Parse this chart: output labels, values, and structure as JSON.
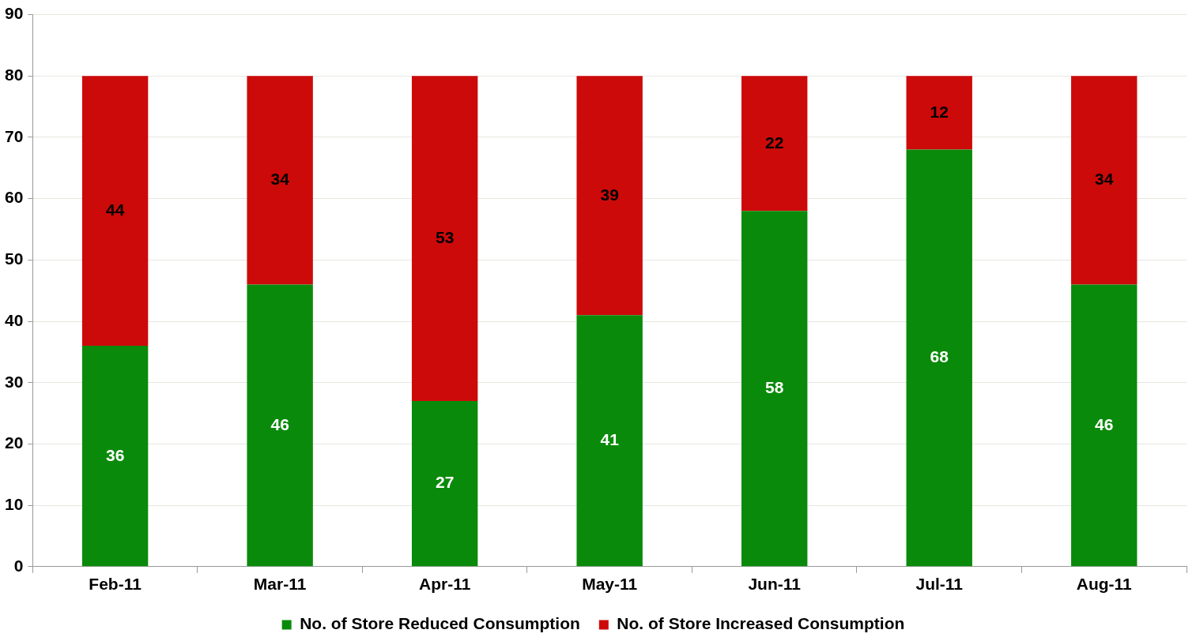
{
  "chart_data": {
    "type": "bar",
    "stacked": true,
    "categories": [
      "Feb-11",
      "Mar-11",
      "Apr-11",
      "May-11",
      "Jun-11",
      "Jul-11",
      "Aug-11"
    ],
    "series": [
      {
        "name": "No. of Store Reduced Consumption",
        "color": "#0a8a0a",
        "values": [
          36,
          46,
          27,
          41,
          58,
          68,
          46
        ]
      },
      {
        "name": "No. of Store Increased Consumption",
        "color": "#cc0a0a",
        "values": [
          44,
          34,
          53,
          39,
          22,
          12,
          34
        ]
      }
    ],
    "ylim": [
      0,
      90
    ],
    "yticks": [
      0,
      10,
      20,
      30,
      40,
      50,
      60,
      70,
      80,
      90
    ],
    "grid": "y",
    "legend": "bottom",
    "data_labels": true
  }
}
